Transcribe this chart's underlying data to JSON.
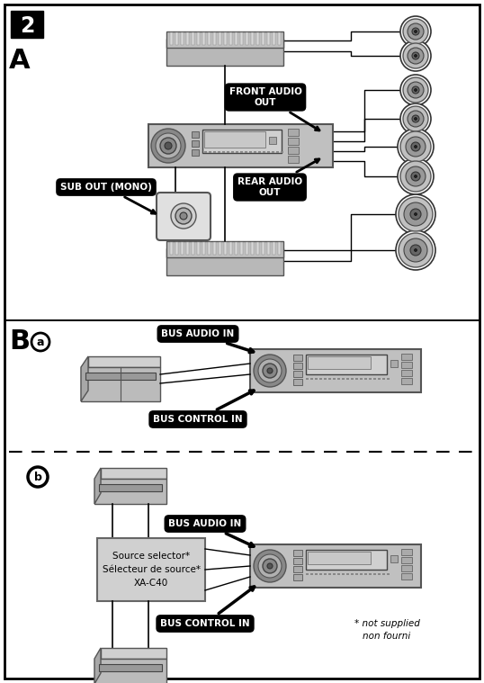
{
  "bg_color": "#ffffff",
  "section_A": {
    "front_audio_out": "FRONT AUDIO\nOUT",
    "rear_audio_out": "REAR AUDIO\nOUT",
    "sub_out": "SUB OUT (MONO)"
  },
  "section_B": {
    "bus_audio_in": "BUS AUDIO IN",
    "bus_control_in": "BUS CONTROL IN",
    "source_selector": "Source selector*\nSélecteur de source*\nXA-C40",
    "footnote": "* not supplied\nnon fourni"
  }
}
